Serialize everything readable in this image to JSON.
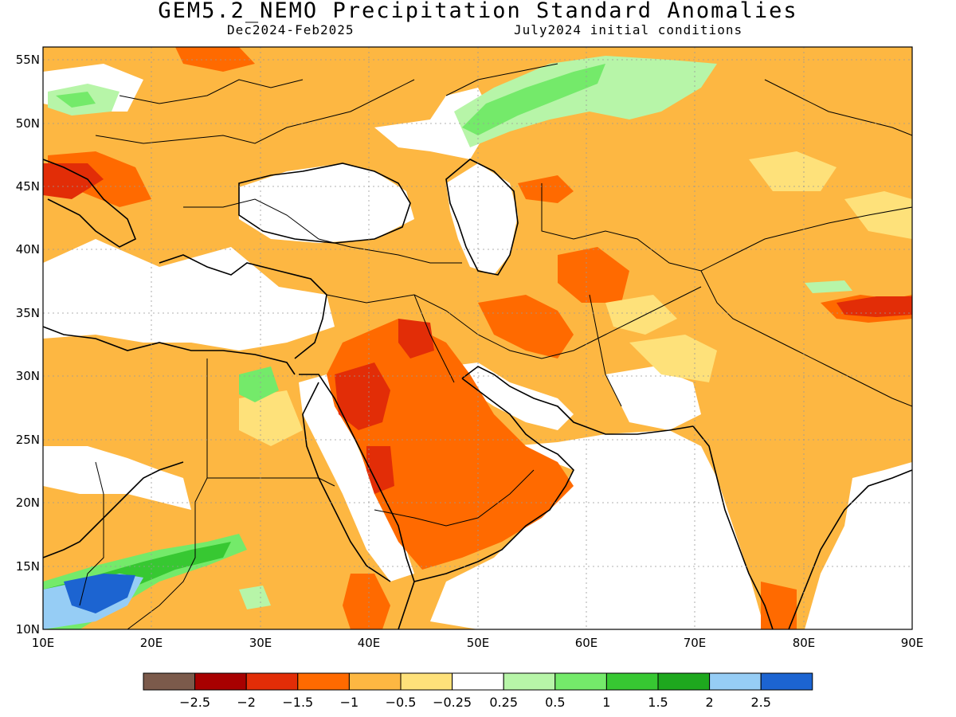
{
  "header": {
    "title": "GEM5.2_NEMO Precipitation Standard Anomalies",
    "period": "Dec2024-Feb2025",
    "init": "July2024 initial conditions"
  },
  "axes": {
    "lat_labels": [
      "55N",
      "50N",
      "45N",
      "40N",
      "35N",
      "30N",
      "25N",
      "20N",
      "15N",
      "10N"
    ],
    "lon_labels": [
      "10E",
      "20E",
      "30E",
      "40E",
      "50E",
      "60E",
      "70E",
      "80E",
      "90E"
    ]
  },
  "colorbar": {
    "colors": [
      "#7b5a4b",
      "#a80000",
      "#e22d07",
      "#ff6a00",
      "#fdb742",
      "#fee17a",
      "#ffffff",
      "#b7f5a8",
      "#74ea6a",
      "#37c832",
      "#1ea81e",
      "#96cdf5",
      "#1c64d1"
    ],
    "labels": [
      "-2.5",
      "-2",
      "-1.5",
      "-1",
      "-0.5",
      "-0.25",
      "0.25",
      "0.5",
      "1",
      "1.5",
      "2",
      "2.5"
    ]
  },
  "map_colors": {
    "ocean": "#ffffff",
    "base": "#fdb742",
    "strong_dry": "#ff6a00",
    "very_dry": "#e22d07",
    "mild_dry": "#fee17a",
    "wet": "#b7f5a8",
    "wetter": "#74ea6a",
    "wettest": "#37c832",
    "very_wet": "#1ea81e",
    "blue": "#96cdf5",
    "dark_blue": "#1c64d1"
  }
}
